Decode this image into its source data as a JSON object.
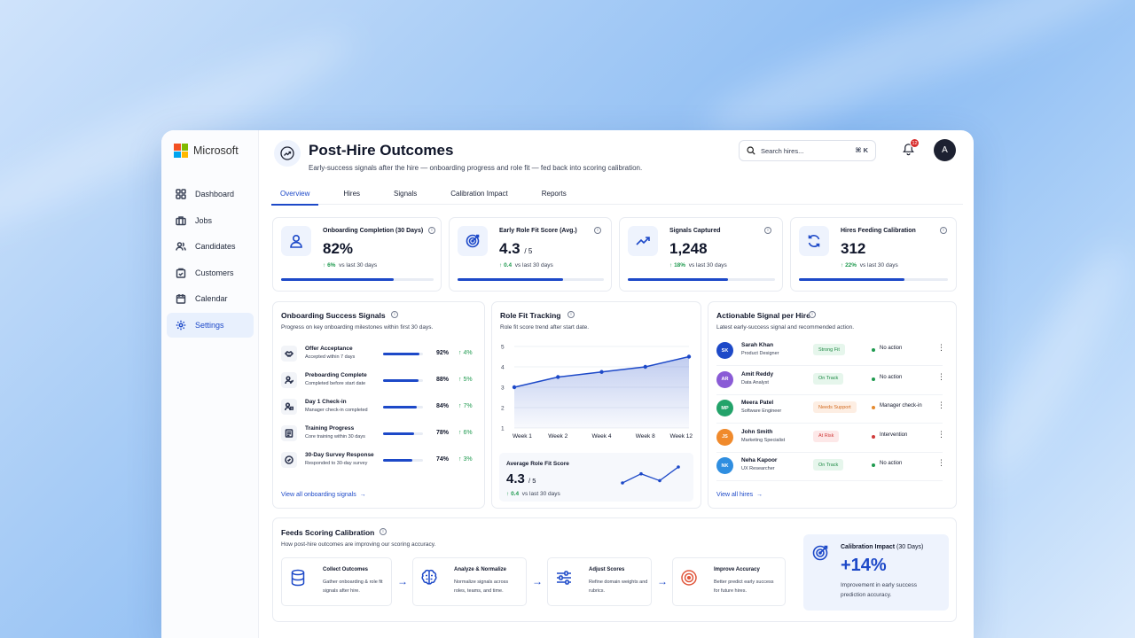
{
  "brand": {
    "name": "Microsoft",
    "colors": [
      "#f25022",
      "#7fba00",
      "#00a4ef",
      "#ffb900"
    ]
  },
  "sidebar": {
    "items": [
      {
        "label": "Dashboard",
        "icon": "grid-icon"
      },
      {
        "label": "Jobs",
        "icon": "briefcase-icon"
      },
      {
        "label": "Candidates",
        "icon": "users-icon"
      },
      {
        "label": "Customers",
        "icon": "clipboard-icon"
      },
      {
        "label": "Calendar",
        "icon": "calendar-icon"
      },
      {
        "label": "Settings",
        "icon": "gear-icon",
        "active": true
      }
    ]
  },
  "header": {
    "title": "Post-Hire Outcomes",
    "subtitle": "Early-success signals after the hire — onboarding progress and role fit — fed back into scoring calibration.",
    "search_placeholder": "Search hires...",
    "search_shortcut": "⌘ K",
    "notifications_count": "12",
    "avatar_initial": "A"
  },
  "tabs": [
    "Overview",
    "Hires",
    "Signals",
    "Calibration Impact",
    "Reports"
  ],
  "kpis": [
    {
      "label": "Onboarding Completion (30 Days)",
      "value": "82%",
      "unit": "",
      "delta": "6%",
      "delta_text": "vs last 30 days",
      "progress": 0.74,
      "icon": "user-icon"
    },
    {
      "label": "Early Role Fit Score (Avg.)",
      "value": "4.3",
      "unit": "/ 5",
      "delta": "0.4",
      "delta_text": "vs last 30 days",
      "progress": 0.72,
      "icon": "target-icon"
    },
    {
      "label": "Signals Captured",
      "value": "1,248",
      "unit": "",
      "delta": "18%",
      "delta_text": "vs last 30 days",
      "progress": 0.68,
      "icon": "trend-up-icon"
    },
    {
      "label": "Hires Feeding Calibration",
      "value": "312",
      "unit": "",
      "delta": "22%",
      "delta_text": "vs last 30 days",
      "progress": 0.71,
      "icon": "refresh-icon"
    }
  ],
  "onboarding": {
    "title": "Onboarding Success Signals",
    "subtitle": "Progress on key onboarding milestones within first 30 days.",
    "link": "View all onboarding signals",
    "milestones": [
      {
        "name": "Offer Acceptance",
        "desc": "Accepted within 7 days",
        "pct": "92%",
        "progress": 0.92,
        "delta": "4%"
      },
      {
        "name": "Preboarding Complete",
        "desc": "Completed before start date",
        "pct": "88%",
        "progress": 0.88,
        "delta": "5%"
      },
      {
        "name": "Day 1 Check-in",
        "desc": "Manager check-in completed",
        "pct": "84%",
        "progress": 0.84,
        "delta": "7%"
      },
      {
        "name": "Training Progress",
        "desc": "Core training within 30 days",
        "pct": "78%",
        "progress": 0.78,
        "delta": "6%"
      },
      {
        "name": "30-Day Survey Response",
        "desc": "Responded to 30-day survey",
        "pct": "74%",
        "progress": 0.74,
        "delta": "3%"
      }
    ]
  },
  "role_fit": {
    "title": "Role Fit Tracking",
    "subtitle": "Role fit score trend after start date.",
    "avg_label": "Average Role Fit Score",
    "avg_value": "4.3",
    "avg_unit": "/ 5",
    "avg_delta": "0.4",
    "avg_delta_text": "vs last 30 days",
    "sparkline": [
      3.2,
      3.6,
      3.3,
      3.9
    ]
  },
  "chart_data": {
    "type": "area",
    "categories": [
      "Week 1",
      "Week 2",
      "Week 4",
      "Week 8",
      "Week 12"
    ],
    "values": [
      3.0,
      3.5,
      3.75,
      4.0,
      4.5
    ],
    "yticks": [
      "5",
      "4",
      "3",
      "2",
      "1"
    ],
    "ylim": [
      1,
      5
    ],
    "color": "#1d49c8"
  },
  "actionable": {
    "title": "Actionable Signal per Hire",
    "subtitle": "Latest early-success signal and recommended action.",
    "link": "View all hires",
    "hires": [
      {
        "initials": "SK",
        "name": "Sarah Khan",
        "role": "Product Designer",
        "signal": "Strong Fit",
        "action": "No action",
        "avatar_color": "#1d49c8",
        "pill_bg": "#e6f6ec",
        "pill_fg": "#1f8a45",
        "dot": "#1f9a4f"
      },
      {
        "initials": "AR",
        "name": "Amit Reddy",
        "role": "Data Analyst",
        "signal": "On Track",
        "action": "No action",
        "avatar_color": "#8a5bd6",
        "pill_bg": "#e6f6ec",
        "pill_fg": "#1f8a45",
        "dot": "#1f9a4f"
      },
      {
        "initials": "MP",
        "name": "Meera Patel",
        "role": "Software Engineer",
        "signal": "Needs Support",
        "action": "Manager check-in",
        "avatar_color": "#23a36a",
        "pill_bg": "#fdeee3",
        "pill_fg": "#d26a1f",
        "dot": "#e58a2e"
      },
      {
        "initials": "JS",
        "name": "John Smith",
        "role": "Marketing Specialist",
        "signal": "At Risk",
        "action": "Intervention",
        "avatar_color": "#f08a2c",
        "pill_bg": "#fde8e8",
        "pill_fg": "#d03b3b",
        "dot": "#d03b3b"
      },
      {
        "initials": "NK",
        "name": "Neha Kapoor",
        "role": "UX Researcher",
        "signal": "On Track",
        "action": "No action",
        "avatar_color": "#2f8ee0",
        "pill_bg": "#e6f6ec",
        "pill_fg": "#1f8a45",
        "dot": "#1f9a4f"
      }
    ]
  },
  "calibration": {
    "title": "Feeds Scoring Calibration",
    "subtitle": "How post-hire outcomes are improving our scoring accuracy.",
    "steps": [
      {
        "title": "Collect Outcomes",
        "desc": "Gather onboarding & role fit signals after hire.",
        "icon": "database-icon"
      },
      {
        "title": "Analyze & Normalize",
        "desc": "Normalize signals across roles, teams, and time.",
        "icon": "brain-icon"
      },
      {
        "title": "Adjust Scores",
        "desc": "Refine domain weights and rubrics.",
        "icon": "sliders-icon"
      },
      {
        "title": "Improve Accuracy",
        "desc": "Better predict early success for future hires.",
        "icon": "target-icon"
      }
    ],
    "impact_label": "Calibration Impact",
    "impact_period": "(30 Days)",
    "impact_value": "+14%",
    "impact_desc": "Improvement in early success prediction accuracy."
  }
}
